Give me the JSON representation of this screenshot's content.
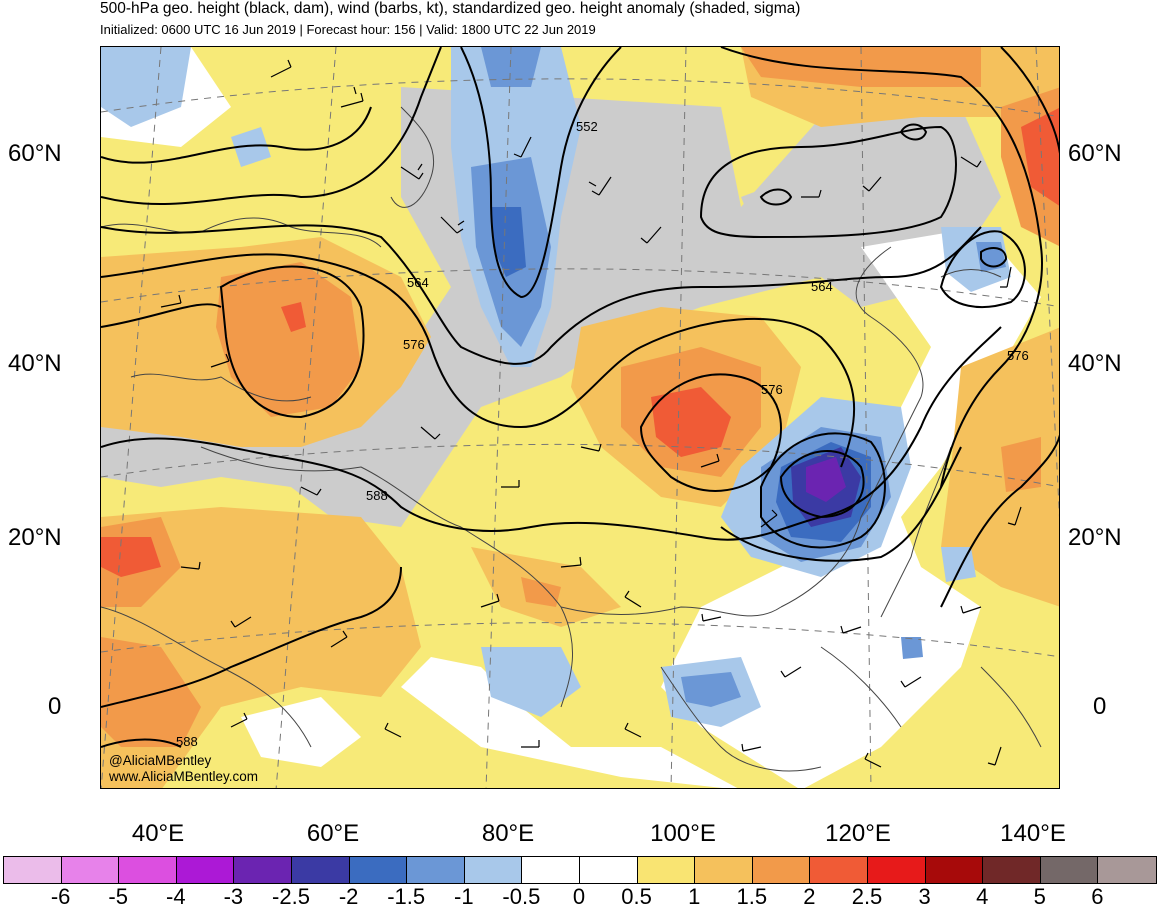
{
  "header": {
    "title": "500-hPa geo. height (black, dam), wind (barbs, kt), standardized geo. height anomaly (shaded, sigma)",
    "subtitle": "Initialized: 0600 UTC 16 Jun 2019 | Forecast hour: 156 | Valid: 1800 UTC 22 Jun 2019"
  },
  "map": {
    "latitude_labels": [
      "60°N",
      "40°N",
      "20°N",
      "0"
    ],
    "longitude_labels": [
      "40°E",
      "60°E",
      "80°E",
      "100°E",
      "120°E",
      "140°E"
    ],
    "contour_labels": [
      "552",
      "564",
      "564",
      "576",
      "576",
      "576",
      "588",
      "588"
    ],
    "credit_line1": "@AliciaMBentley",
    "credit_line2": "www.AliciaMBentley.com"
  },
  "colorbar": {
    "colors": [
      "#ebbcea",
      "#e782ea",
      "#dc4fe0",
      "#ac19d6",
      "#6b24b1",
      "#3b3aa4",
      "#3b6cc0",
      "#6b97d6",
      "#a8c8ea",
      "#ffffff",
      "#ffffff",
      "#f9e472",
      "#f5c15c",
      "#f29a4a",
      "#f05b36",
      "#e71a1a",
      "#a70a0a",
      "#702828",
      "#746868",
      "#a89898"
    ],
    "labels": [
      "-6",
      "-5",
      "-4",
      "-3",
      "-2.5",
      "-2",
      "-1.5",
      "-1",
      "-0.5",
      "0",
      "0.5",
      "1",
      "1.5",
      "2",
      "2.5",
      "3",
      "4",
      "5",
      "6"
    ]
  }
}
